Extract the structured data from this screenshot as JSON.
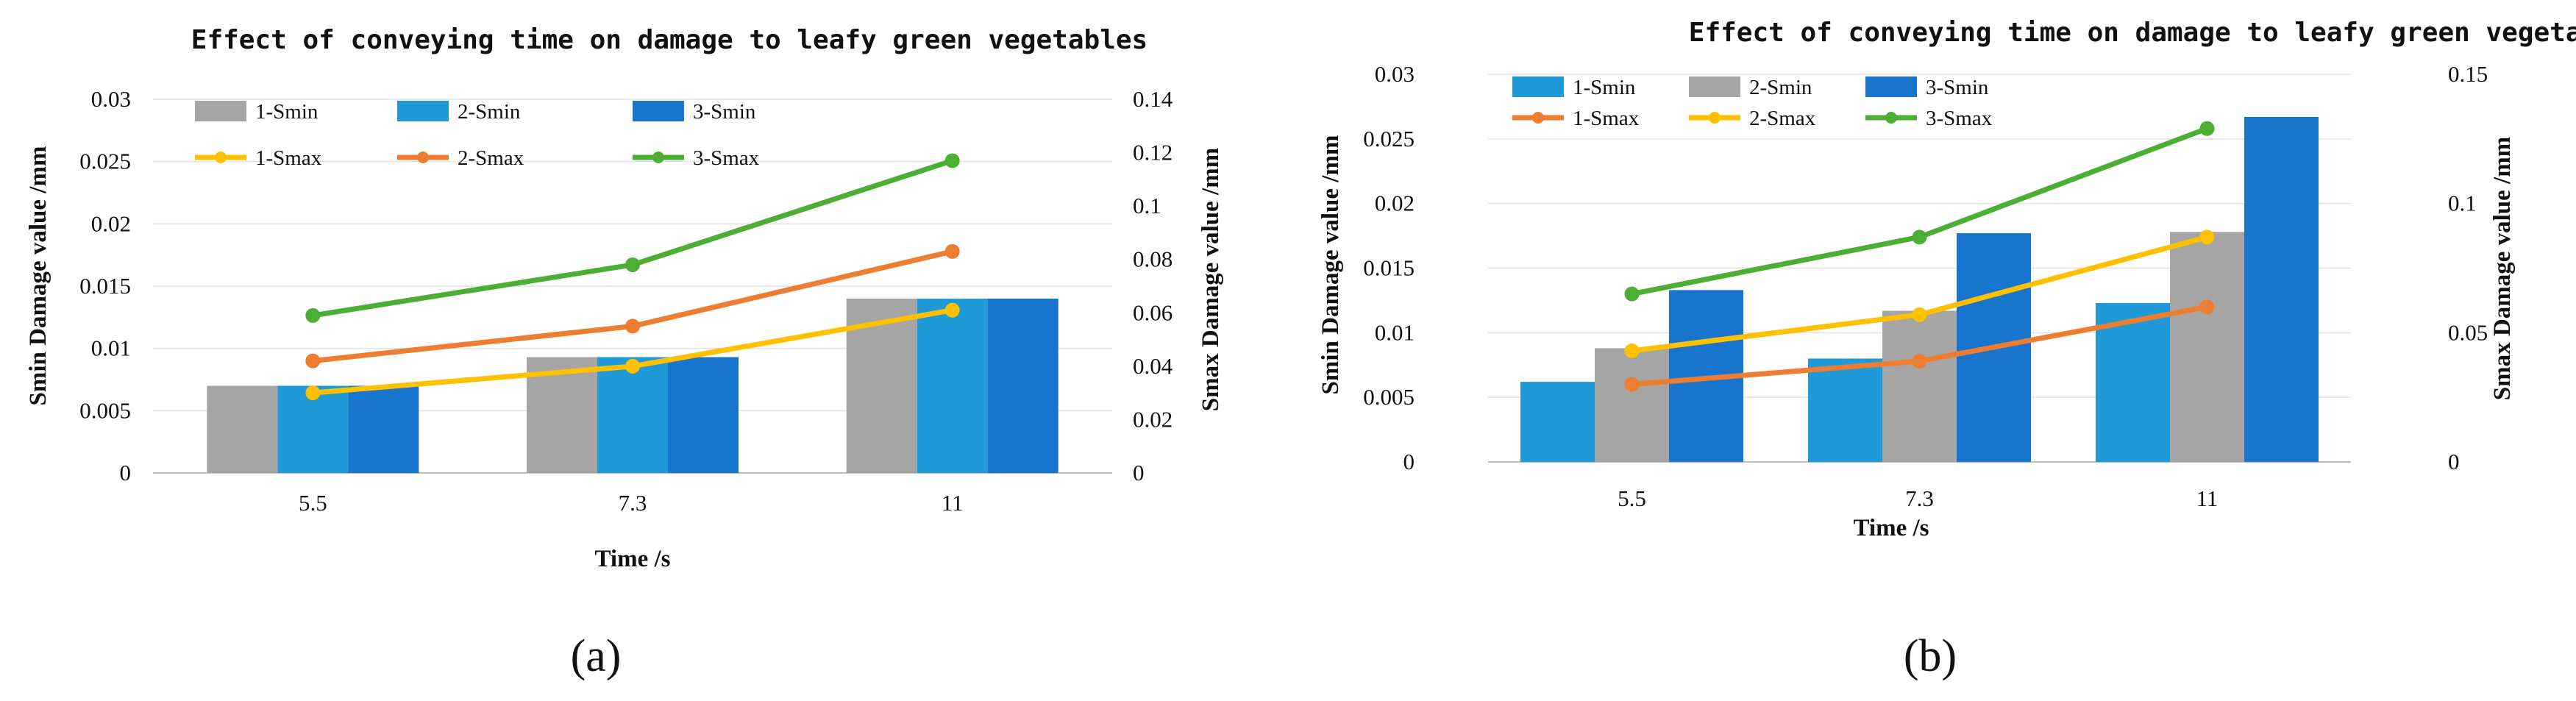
{
  "panels": [
    {
      "label": "(a)"
    },
    {
      "label": "(b)"
    }
  ],
  "chart_data": [
    {
      "type": "bar",
      "title": "Effect of conveying time on damage to leafy green vegetables",
      "xlabel": "Time /s",
      "ylabel": "Smin Damage value /mm",
      "ylabel_right": "Smax Damage value /mm",
      "categories": [
        "5.5",
        "7.3",
        "11"
      ],
      "ylim": [
        0,
        0.03
      ],
      "y2lim": [
        0,
        0.14
      ],
      "yticks": [
        "0",
        "0.005",
        "0.01",
        "0.015",
        "0.02",
        "0.025",
        "0.03"
      ],
      "y2ticks": [
        "0",
        "0.02",
        "0.04",
        "0.06",
        "0.08",
        "0.1",
        "0.12",
        "0.14"
      ],
      "grid": true,
      "legend_position": "top-left",
      "bar_series": [
        {
          "name": "1-Smin",
          "values": [
            0.007,
            0.0093,
            0.014
          ],
          "color": "#a5a5a5"
        },
        {
          "name": "2-Smin",
          "values": [
            0.007,
            0.0093,
            0.014
          ],
          "color": "#1f9ad6"
        },
        {
          "name": "3-Smin",
          "values": [
            0.007,
            0.0093,
            0.014
          ],
          "color": "#1874cd"
        }
      ],
      "line_series": [
        {
          "name": "1-Smax",
          "values": [
            0.03,
            0.04,
            0.061
          ],
          "color": "#ffc000"
        },
        {
          "name": "2-Smax",
          "values": [
            0.042,
            0.055,
            0.083
          ],
          "color": "#ed7d31"
        },
        {
          "name": "3-Smax",
          "values": [
            0.059,
            0.078,
            0.117
          ],
          "color": "#4caf34"
        }
      ]
    },
    {
      "type": "bar",
      "title": "Effect of conveying time on damage to leafy green vegetables",
      "xlabel": "Time /s",
      "ylabel": "Smin Damage value /mm",
      "ylabel_right": "Smax Damage value /mm",
      "categories": [
        "5.5",
        "7.3",
        "11"
      ],
      "ylim": [
        0,
        0.03
      ],
      "y2lim": [
        0,
        0.15
      ],
      "yticks": [
        "0",
        "0.005",
        "0.01",
        "0.015",
        "0.02",
        "0.025",
        "0.03"
      ],
      "y2ticks": [
        "0",
        "0.05",
        "0.1",
        "0.15"
      ],
      "grid": true,
      "legend_position": "top-left",
      "bar_series": [
        {
          "name": "1-Smin",
          "values": [
            0.0062,
            0.008,
            0.0123
          ],
          "color": "#1f9ad6"
        },
        {
          "name": "2-Smin",
          "values": [
            0.0088,
            0.0117,
            0.0178
          ],
          "color": "#a5a5a5"
        },
        {
          "name": "3-Smin",
          "values": [
            0.0133,
            0.0177,
            0.0267
          ],
          "color": "#1874cd"
        }
      ],
      "line_series": [
        {
          "name": "1-Smax",
          "values": [
            0.03,
            0.039,
            0.06
          ],
          "color": "#ed7d31"
        },
        {
          "name": "2-Smax",
          "values": [
            0.043,
            0.057,
            0.087
          ],
          "color": "#ffc000"
        },
        {
          "name": "3-Smax",
          "values": [
            0.065,
            0.087,
            0.129
          ],
          "color": "#4caf34"
        }
      ]
    }
  ]
}
